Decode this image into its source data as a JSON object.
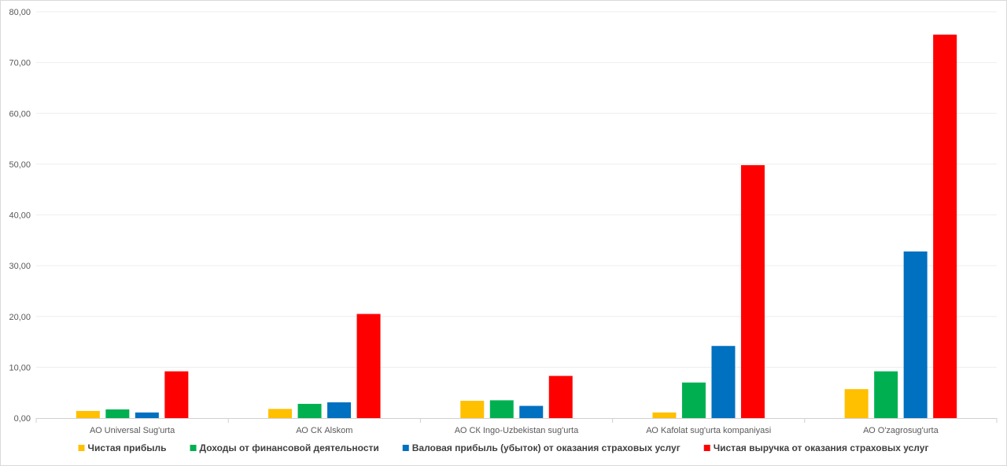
{
  "chart_data": {
    "type": "bar",
    "categories": [
      "АО Universal Sug'urta",
      "АО СК Alskom",
      "АО СК Ingo-Uzbekistan sug'urta",
      "АО Kafolat sug'urta kompaniyasi",
      "АО O'zagrosug'urta"
    ],
    "series": [
      {
        "name": "Чистая прибыль",
        "color": "#FFC000",
        "values": [
          1.4,
          1.8,
          3.4,
          1.1,
          5.7
        ]
      },
      {
        "name": "Доходы от финансовой деятельности",
        "color": "#00B050",
        "values": [
          1.7,
          2.8,
          3.5,
          7.0,
          9.2
        ]
      },
      {
        "name": "Валовая прибыль (убыток) от оказания страховых услуг",
        "color": "#0070C0",
        "values": [
          1.1,
          3.1,
          2.4,
          14.2,
          32.8
        ]
      },
      {
        "name": "Чистая выручка от оказания страховых услуг",
        "color": "#FF0000",
        "values": [
          9.2,
          20.5,
          8.3,
          49.8,
          75.5
        ]
      }
    ],
    "yticks": [
      "0,00",
      "10,00",
      "20,00",
      "30,00",
      "40,00",
      "50,00",
      "60,00",
      "70,00",
      "80,00"
    ],
    "ylim": [
      0,
      80
    ],
    "title": "",
    "xlabel": "",
    "ylabel": "",
    "grid": true,
    "legend": "bottom"
  }
}
